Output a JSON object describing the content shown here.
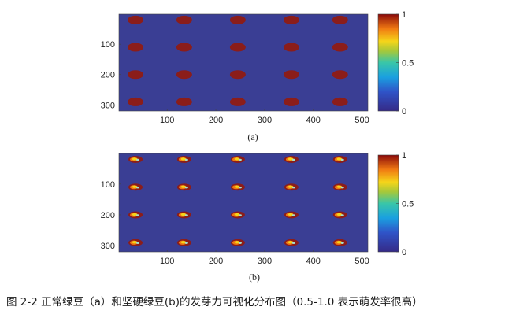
{
  "figure": {
    "caption": "图 2-2  正常绿豆（a）和坚硬绿豆(b)的发芽力可视化分布图（0.5-1.0 表示萌发率很高）"
  },
  "chart_data": [
    {
      "type": "heatmap",
      "panel_label": "(a)",
      "x_ticks": [
        "100",
        "200",
        "300",
        "400",
        "500"
      ],
      "y_ticks": [
        "100",
        "200",
        "300"
      ],
      "xlim": [
        1,
        512
      ],
      "ylim": [
        1,
        320
      ],
      "colorbar": {
        "range": [
          0,
          1
        ],
        "ticks": [
          "0",
          "0.5",
          "1"
        ],
        "colormap": "jet"
      },
      "background_value": 0,
      "rows_y": [
        20,
        110,
        200,
        290
      ],
      "cols_x": [
        35,
        135,
        245,
        355,
        455
      ],
      "seed_value": 0.95,
      "seed_color": "#8b1d1a",
      "background_color": "#3a3e94"
    },
    {
      "type": "heatmap",
      "panel_label": "(b)",
      "x_ticks": [
        "100",
        "200",
        "300",
        "400",
        "500"
      ],
      "y_ticks": [
        "100",
        "200",
        "300"
      ],
      "xlim": [
        1,
        512
      ],
      "ylim": [
        1,
        320
      ],
      "colorbar": {
        "range": [
          0,
          1
        ],
        "ticks": [
          "0",
          "0.5",
          "1"
        ],
        "colormap": "jet"
      },
      "background_value": 0,
      "rows_y": [
        20,
        110,
        200,
        290
      ],
      "cols_x": [
        35,
        135,
        245,
        355,
        455
      ],
      "seed_value": 0.7,
      "seed_color": "#8b1d1a",
      "background_color": "#3a3e94"
    }
  ]
}
